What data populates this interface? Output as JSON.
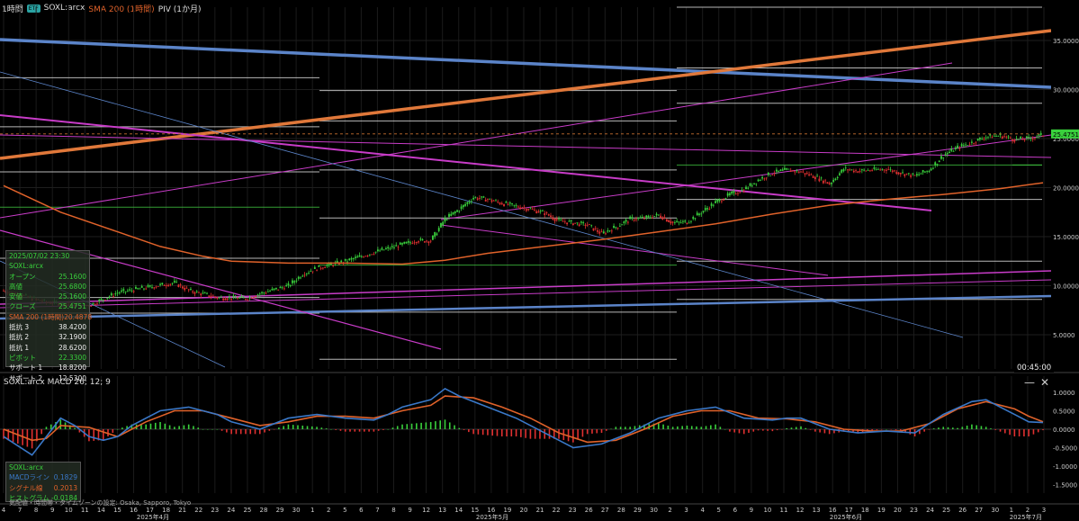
{
  "header": {
    "interval": "1時間",
    "etf_badge": "ETF",
    "symbol": "SOXL:arcx",
    "sma_label": "SMA 200 (1時間)",
    "piv_label": "PIV (1か月)"
  },
  "info_panel": {
    "datetime": "2025/07/02 23:30",
    "symbol": "SOXL:arcx",
    "rows": [
      {
        "label": "オープン",
        "value": "25.1600",
        "color": "#39d03c"
      },
      {
        "label": "高値",
        "value": "25.6800",
        "color": "#39d03c"
      },
      {
        "label": "安値",
        "value": "25.1600",
        "color": "#39d03c"
      },
      {
        "label": "クローズ",
        "value": "25.4751",
        "color": "#39d03c"
      },
      {
        "label": "SMA 200 (1時間)",
        "value": "20.4878",
        "color": "#e0622a"
      },
      {
        "label": "抵抗 3",
        "value": "38.4200",
        "color": "#f0f0f0"
      },
      {
        "label": "抵抗 2",
        "value": "32.1900",
        "color": "#f0f0f0"
      },
      {
        "label": "抵抗 1",
        "value": "28.6200",
        "color": "#f0f0f0"
      },
      {
        "label": "ピボット",
        "value": "22.3300",
        "color": "#39d03c"
      },
      {
        "label": "サポート 1",
        "value": "18.8200",
        "color": "#f0f0f0"
      },
      {
        "label": "サポート 2",
        "value": "12.5300",
        "color": "#f0f0f0"
      }
    ]
  },
  "macd_header": "SOXL:arcx  MACD 26; 12; 9",
  "macd_panel": {
    "symbol": "SOXL:arcx",
    "rows": [
      {
        "label": "MACDライン",
        "value": "0.1829",
        "color": "#3a78c8"
      },
      {
        "label": "シグナル線",
        "value": "0.2013",
        "color": "#e0622a"
      },
      {
        "label": "ヒストグラム",
        "value": "-0.0184",
        "color": "#39d03c"
      }
    ]
  },
  "window_buttons": {
    "minimize": "—",
    "close": "✕"
  },
  "footnote": "気配値・時間帯・タイムゾーンの設定: Osaka, Sapporo, Tokyo",
  "time_readout": "00:45:00",
  "chart_data": {
    "type": "candlestick",
    "price_axis": {
      "ticks": [
        {
          "v": 35,
          "label": "35.0000"
        },
        {
          "v": 30,
          "label": "30.0000"
        },
        {
          "v": 25,
          "label": "25.0000"
        },
        {
          "v": 20,
          "label": "20.0000"
        },
        {
          "v": 15,
          "label": "15.0000"
        },
        {
          "v": 10,
          "label": "10.0000"
        },
        {
          "v": 5,
          "label": "5.0000"
        }
      ],
      "current": {
        "v": 25.4751,
        "label": "25.4751"
      }
    },
    "macd_axis": {
      "ticks": [
        {
          "v": 1,
          "label": "1.0000"
        },
        {
          "v": 0.5,
          "label": "0.5000"
        },
        {
          "v": 0,
          "label": "0.0000"
        },
        {
          "v": -0.5,
          "label": "-0.5000"
        },
        {
          "v": -1,
          "label": "-1.0000"
        },
        {
          "v": -1.5,
          "label": "-1.5000"
        }
      ]
    },
    "x_axis": {
      "days": [
        "4",
        "7",
        "8",
        "9",
        "10",
        "11",
        "14",
        "15",
        "16",
        "17",
        "18",
        "21",
        "22",
        "23",
        "24",
        "25",
        "28",
        "29",
        "30",
        "1",
        "2",
        "5",
        "6",
        "7",
        "8",
        "9",
        "12",
        "13",
        "14",
        "15",
        "16",
        "19",
        "20",
        "21",
        "22",
        "23",
        "26",
        "27",
        "28",
        "29",
        "30",
        "2",
        "3",
        "4",
        "5",
        "6",
        "9",
        "10",
        "11",
        "12",
        "13",
        "16",
        "17",
        "18",
        "19",
        "20",
        "23",
        "24",
        "25",
        "26",
        "27",
        "30",
        "1",
        "2",
        "3"
      ],
      "months": [
        "2025年4月",
        "2025年5月",
        "2025年6月",
        "2025年7月"
      ]
    },
    "price_path": [
      [
        0,
        9.5
      ],
      [
        3,
        8.3
      ],
      [
        6,
        8.0
      ],
      [
        8,
        9.3
      ],
      [
        10,
        9.8
      ],
      [
        12,
        10.3
      ],
      [
        13,
        9.5
      ],
      [
        15,
        8.8
      ],
      [
        17,
        8.7
      ],
      [
        18,
        9.2
      ],
      [
        20,
        10.0
      ],
      [
        21,
        11.2
      ],
      [
        22,
        11.8
      ],
      [
        24,
        12.5
      ],
      [
        26,
        13.4
      ],
      [
        28,
        14.2
      ],
      [
        29,
        14.6
      ],
      [
        30,
        14.6
      ],
      [
        31,
        16.8
      ],
      [
        32,
        17.8
      ],
      [
        33,
        19.0
      ],
      [
        34,
        18.8
      ],
      [
        35,
        18.4
      ],
      [
        36,
        18.1
      ],
      [
        37,
        17.8
      ],
      [
        38,
        17.4
      ],
      [
        39,
        16.6
      ],
      [
        40,
        16.4
      ],
      [
        41,
        16.2
      ],
      [
        42,
        15.3
      ],
      [
        43,
        16.0
      ],
      [
        44,
        16.8
      ],
      [
        45,
        16.9
      ],
      [
        46,
        17.2
      ],
      [
        47,
        16.4
      ],
      [
        48,
        16.5
      ],
      [
        49,
        17.5
      ],
      [
        50,
        18.5
      ],
      [
        51,
        19.3
      ],
      [
        52,
        19.8
      ],
      [
        53,
        20.8
      ],
      [
        54,
        21.5
      ],
      [
        55,
        21.8
      ],
      [
        56,
        21.6
      ],
      [
        57,
        21.1
      ],
      [
        58,
        20.4
      ],
      [
        59,
        21.9
      ],
      [
        60,
        21.7
      ],
      [
        61,
        21.8
      ],
      [
        62,
        21.9
      ],
      [
        63,
        21.5
      ],
      [
        64,
        21.2
      ],
      [
        65,
        21.8
      ],
      [
        66,
        23.3
      ],
      [
        67,
        24.1
      ],
      [
        68,
        24.6
      ],
      [
        69,
        25.2
      ],
      [
        70,
        25.3
      ],
      [
        71,
        24.9
      ],
      [
        72,
        25.0
      ],
      [
        73,
        25.4
      ]
    ],
    "sma_path": [
      [
        0,
        20.2
      ],
      [
        4,
        17.5
      ],
      [
        8,
        15.5
      ],
      [
        11,
        14.0
      ],
      [
        14,
        13.0
      ],
      [
        16,
        12.5
      ],
      [
        20,
        12.3
      ],
      [
        24,
        12.3
      ],
      [
        28,
        12.2
      ],
      [
        31,
        12.6
      ],
      [
        34,
        13.3
      ],
      [
        38,
        14.0
      ],
      [
        42,
        14.7
      ],
      [
        46,
        15.5
      ],
      [
        50,
        16.3
      ],
      [
        54,
        17.3
      ],
      [
        58,
        18.2
      ],
      [
        62,
        18.8
      ],
      [
        66,
        19.3
      ],
      [
        70,
        19.9
      ],
      [
        73,
        20.5
      ]
    ],
    "macd_path": [
      [
        0,
        -0.2
      ],
      [
        2,
        -0.7
      ],
      [
        3,
        -0.2
      ],
      [
        4,
        0.3
      ],
      [
        5,
        0.1
      ],
      [
        6,
        -0.2
      ],
      [
        7,
        -0.3
      ],
      [
        8,
        -0.2
      ],
      [
        9,
        0.1
      ],
      [
        11,
        0.5
      ],
      [
        13,
        0.6
      ],
      [
        15,
        0.4
      ],
      [
        16,
        0.2
      ],
      [
        17,
        0.1
      ],
      [
        18,
        0.0
      ],
      [
        20,
        0.3
      ],
      [
        22,
        0.4
      ],
      [
        24,
        0.3
      ],
      [
        26,
        0.25
      ],
      [
        27,
        0.4
      ],
      [
        28,
        0.6
      ],
      [
        30,
        0.8
      ],
      [
        31,
        1.1
      ],
      [
        32,
        0.9
      ],
      [
        34,
        0.6
      ],
      [
        36,
        0.3
      ],
      [
        38,
        -0.1
      ],
      [
        40,
        -0.5
      ],
      [
        42,
        -0.4
      ],
      [
        44,
        -0.1
      ],
      [
        46,
        0.3
      ],
      [
        48,
        0.5
      ],
      [
        50,
        0.6
      ],
      [
        52,
        0.3
      ],
      [
        54,
        0.25
      ],
      [
        55,
        0.3
      ],
      [
        56,
        0.3
      ],
      [
        58,
        0.0
      ],
      [
        60,
        -0.1
      ],
      [
        62,
        -0.05
      ],
      [
        64,
        -0.1
      ],
      [
        66,
        0.4
      ],
      [
        68,
        0.75
      ],
      [
        69,
        0.8
      ],
      [
        70,
        0.6
      ],
      [
        71,
        0.4
      ],
      [
        72,
        0.2
      ],
      [
        73,
        0.18
      ]
    ],
    "signal_path": [
      [
        0,
        0.0
      ],
      [
        2,
        -0.3
      ],
      [
        3,
        -0.25
      ],
      [
        4,
        0.1
      ],
      [
        6,
        0.05
      ],
      [
        8,
        -0.2
      ],
      [
        10,
        0.2
      ],
      [
        12,
        0.5
      ],
      [
        14,
        0.5
      ],
      [
        16,
        0.3
      ],
      [
        18,
        0.1
      ],
      [
        20,
        0.2
      ],
      [
        22,
        0.35
      ],
      [
        24,
        0.35
      ],
      [
        26,
        0.3
      ],
      [
        28,
        0.5
      ],
      [
        30,
        0.65
      ],
      [
        31,
        0.9
      ],
      [
        33,
        0.85
      ],
      [
        35,
        0.6
      ],
      [
        37,
        0.3
      ],
      [
        39,
        -0.1
      ],
      [
        41,
        -0.35
      ],
      [
        43,
        -0.3
      ],
      [
        45,
        0.0
      ],
      [
        47,
        0.35
      ],
      [
        49,
        0.5
      ],
      [
        51,
        0.5
      ],
      [
        53,
        0.3
      ],
      [
        55,
        0.28
      ],
      [
        57,
        0.2
      ],
      [
        59,
        0.0
      ],
      [
        61,
        -0.05
      ],
      [
        63,
        -0.05
      ],
      [
        65,
        0.15
      ],
      [
        67,
        0.55
      ],
      [
        69,
        0.75
      ],
      [
        71,
        0.55
      ],
      [
        72,
        0.35
      ],
      [
        73,
        0.2
      ]
    ],
    "colors": {
      "up": "#39d03c",
      "down": "#e03030",
      "sma": "#e0622a",
      "macd": "#3a78c8",
      "signal": "#e0622a",
      "trend_blue": "#5b84c9",
      "trend_orange": "#e0783a",
      "magenta": "#c83cc8",
      "pivot_white": "#d8d8d8",
      "pivot_green": "#3cb83c"
    }
  }
}
